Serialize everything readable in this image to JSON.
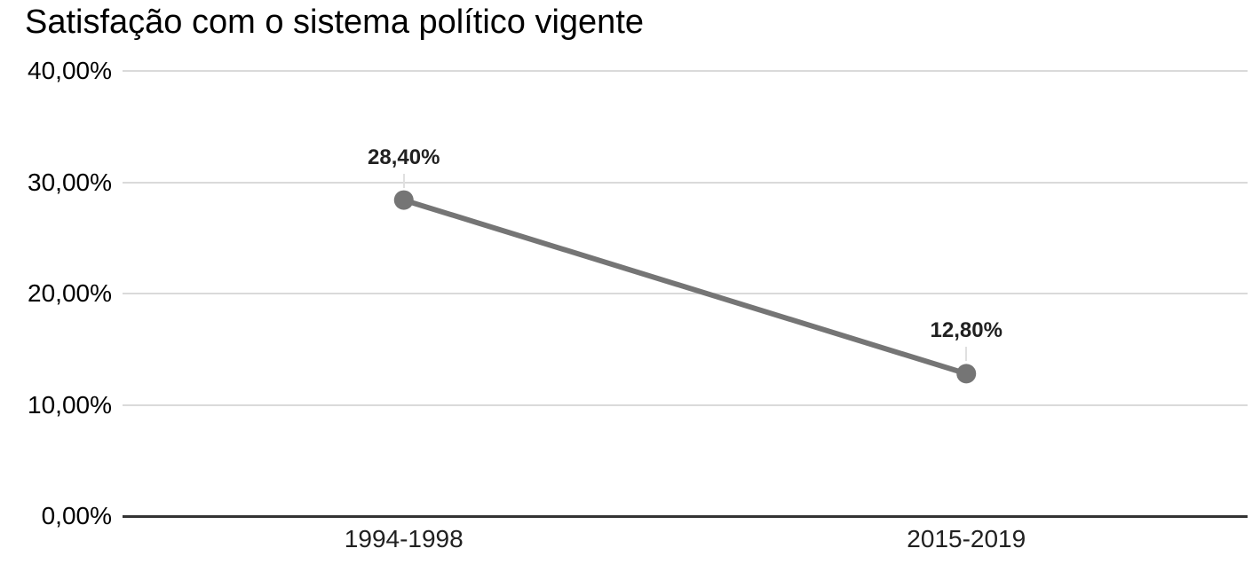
{
  "chart_data": {
    "type": "line",
    "title": "Satisfação com o sistema político vigente",
    "categories": [
      "1994-1998",
      "2015-2019"
    ],
    "values": [
      28.4,
      12.8
    ],
    "value_labels": [
      "28,40%",
      "12,80%"
    ],
    "yticks": [
      {
        "label": "40,00%",
        "value": 40
      },
      {
        "label": "30,00%",
        "value": 30
      },
      {
        "label": "20,00%",
        "value": 20
      },
      {
        "label": "10,00%",
        "value": 10
      },
      {
        "label": "0,00%",
        "value": 0
      }
    ],
    "ylim": [
      0,
      40
    ],
    "xlabel": "",
    "ylabel": "",
    "grid": true,
    "legend": "none",
    "colors": {
      "series": "#757575",
      "gridline": "#dadada",
      "axis": "#333333",
      "data_label": "#212121",
      "leader": "#e0e0e0",
      "title": "#000000"
    }
  }
}
